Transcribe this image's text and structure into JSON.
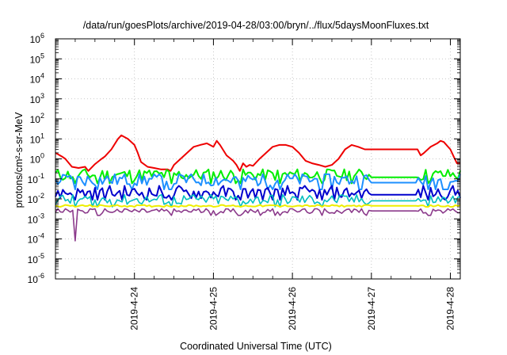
{
  "chart_data": {
    "type": "line",
    "title": "/data/run/goesPlots/archive/2019-04-28/03:00/bryn/../flux/5daysMoonFluxes.txt",
    "xlabel": "Coordinated Universal Time (UTC)",
    "ylabel": "protons/cm²-s-sr-MeV",
    "yscale": "log",
    "ylim": [
      1e-06,
      1000000.0
    ],
    "xlim": [
      "2019-04-23 00:00",
      "2019-04-28 03:00"
    ],
    "grid": true,
    "legend": "none",
    "x_ticks": [
      "2019-4-24",
      "2019-4-25",
      "2019-4-26",
      "2019-4-27",
      "2019-4-28"
    ],
    "y_ticks": [
      {
        "base": "10",
        "exp": "-6"
      },
      {
        "base": "10",
        "exp": "-5"
      },
      {
        "base": "10",
        "exp": "-4"
      },
      {
        "base": "10",
        "exp": "-3"
      },
      {
        "base": "10",
        "exp": "-2"
      },
      {
        "base": "10",
        "exp": "-1"
      },
      {
        "base": "10",
        "exp": "0"
      },
      {
        "base": "10",
        "exp": "1"
      },
      {
        "base": "10",
        "exp": "2"
      },
      {
        "base": "10",
        "exp": "3"
      },
      {
        "base": "10",
        "exp": "4"
      },
      {
        "base": "10",
        "exp": "5"
      },
      {
        "base": "10",
        "exp": "6"
      }
    ],
    "series": [
      {
        "color": "#ee0000",
        "width": 2.0,
        "points": [
          [
            "2019-04-23 00:00",
            2.0
          ],
          [
            "2019-04-23 02:00",
            1.3
          ],
          [
            "2019-04-23 03:00",
            1.0
          ],
          [
            "2019-04-23 05:00",
            0.4
          ],
          [
            "2019-04-23 07:00",
            0.35
          ],
          [
            "2019-04-23 09:00",
            0.4
          ],
          [
            "2019-04-23 10:00",
            0.25
          ],
          [
            "2019-04-23 12:00",
            0.55
          ],
          [
            "2019-04-23 14:00",
            1.0
          ],
          [
            "2019-04-23 15:00",
            1.3
          ],
          [
            "2019-04-23 17:00",
            3.0
          ],
          [
            "2019-04-23 19:00",
            10.0
          ],
          [
            "2019-04-23 20:00",
            15.0
          ],
          [
            "2019-04-23 22:00",
            10.0
          ],
          [
            "2019-04-24 00:00",
            5.0
          ],
          [
            "2019-04-24 01:00",
            2.0
          ],
          [
            "2019-04-24 02:00",
            0.7
          ],
          [
            "2019-04-24 04:00",
            0.4
          ],
          [
            "2019-04-24 06:00",
            0.35
          ],
          [
            "2019-04-24 08:00",
            0.3
          ],
          [
            "2019-04-24 10:00",
            0.3
          ],
          [
            "2019-04-24 11:00",
            0.25
          ],
          [
            "2019-04-24 12:00",
            0.5
          ],
          [
            "2019-04-24 14:00",
            1.0
          ],
          [
            "2019-04-24 16:00",
            2.0
          ],
          [
            "2019-04-24 18:00",
            4.0
          ],
          [
            "2019-04-24 20:00",
            5.0
          ],
          [
            "2019-04-24 22:00",
            6.0
          ],
          [
            "2019-04-25 00:00",
            4.0
          ],
          [
            "2019-04-25 01:00",
            8.0
          ],
          [
            "2019-04-25 02:00",
            5.0
          ],
          [
            "2019-04-25 04:00",
            1.5
          ],
          [
            "2019-04-25 06:00",
            0.8
          ],
          [
            "2019-04-25 07:00",
            0.5
          ],
          [
            "2019-04-25 08:00",
            0.25
          ],
          [
            "2019-04-25 09:00",
            0.6
          ],
          [
            "2019-04-25 10:00",
            0.4
          ],
          [
            "2019-04-25 11:00",
            0.5
          ],
          [
            "2019-04-25 12:00",
            0.45
          ],
          [
            "2019-04-25 14:00",
            1.0
          ],
          [
            "2019-04-25 16:00",
            2.0
          ],
          [
            "2019-04-25 18:00",
            4.0
          ],
          [
            "2019-04-25 20:00",
            5.0
          ],
          [
            "2019-04-25 22:00",
            5.0
          ],
          [
            "2019-04-26 00:00",
            4.0
          ],
          [
            "2019-04-26 02:00",
            2.0
          ],
          [
            "2019-04-26 04:00",
            0.8
          ],
          [
            "2019-04-26 06:00",
            0.6
          ],
          [
            "2019-04-26 08:00",
            0.5
          ],
          [
            "2019-04-26 10:00",
            0.4
          ],
          [
            "2019-04-26 12:00",
            0.5
          ],
          [
            "2019-04-26 14:00",
            1.0
          ],
          [
            "2019-04-26 16:00",
            3.0
          ],
          [
            "2019-04-26 18:00",
            5.0
          ],
          [
            "2019-04-26 20:00",
            4.0
          ],
          [
            "2019-04-26 22:00",
            3.0
          ],
          [
            "2019-04-27 00:00",
            3.0
          ],
          [
            "2019-04-27 08:00",
            3.0
          ],
          [
            "2019-04-27 14:00",
            3.0
          ],
          [
            "2019-04-27 15:00",
            1.5
          ],
          [
            "2019-04-27 16:00",
            2.0
          ],
          [
            "2019-04-27 18:00",
            4.0
          ],
          [
            "2019-04-27 20:00",
            6.0
          ],
          [
            "2019-04-27 21:00",
            8.0
          ],
          [
            "2019-04-27 22:00",
            7.0
          ],
          [
            "2019-04-28 00:00",
            3.0
          ],
          [
            "2019-04-28 01:00",
            1.3
          ],
          [
            "2019-04-28 02:00",
            0.6
          ],
          [
            "2019-04-28 03:00",
            0.6
          ]
        ]
      },
      {
        "color": "#00ee00",
        "width": 2.0,
        "base": 0.16,
        "min": 0.06,
        "max": 0.3,
        "gap_value": 0.12
      },
      {
        "color": "#1e90ff",
        "width": 2.0,
        "base": 0.09,
        "min": 0.03,
        "max": 0.17,
        "gap_value": 0.065
      },
      {
        "color": "#0000cd",
        "width": 2.0,
        "base": 0.02,
        "min": 0.009,
        "max": 0.045,
        "gap_value": 0.016
      },
      {
        "color": "#00bfbf",
        "width": 1.6,
        "base": 0.009,
        "min": 0.004,
        "max": 0.016,
        "gap_value": 0.008
      },
      {
        "color": "#eeee00",
        "width": 2.0,
        "base": 0.0045,
        "min": 0.004,
        "max": 0.005,
        "gap_value": 0.0045
      },
      {
        "color": "#8b3a8b",
        "width": 1.6,
        "base": 0.0025,
        "min": 0.0015,
        "max": 0.0032,
        "gap_value": 0.0025
      }
    ],
    "dip_times": [
      "2019-04-23 06:00",
      "2019-04-23 13:00",
      "2019-04-24 11:00",
      "2019-04-25 08:00",
      "2019-04-25 20:00",
      "2019-04-26 09:00",
      "2019-04-27 17:00"
    ],
    "big_dip": {
      "time": "2019-04-23 06:00",
      "value": 8e-05
    }
  }
}
